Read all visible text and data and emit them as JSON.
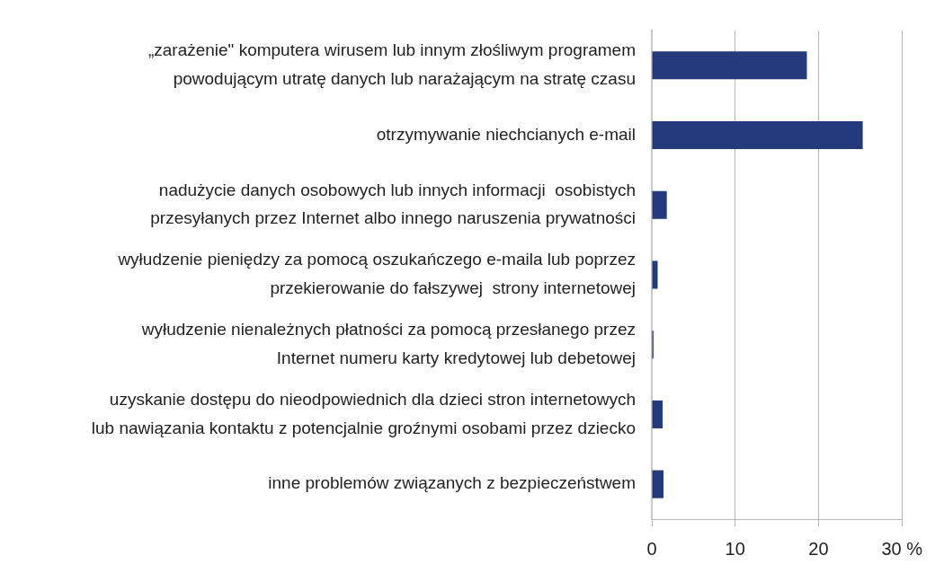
{
  "chart_data": {
    "type": "bar",
    "orientation": "horizontal",
    "categories": [
      "„zarażenie\" komputera wirusem lub innym złośliwym programem\npowodującym utratę danych lub narażającym na stratę czasu",
      "otrzymywanie niechcianych e-mail",
      "nadużycie danych osobowych lub innych informacji  osobistych\nprzesyłanych przez Internet albo innego naruszenia prywatności",
      "wyłudzenie pieniędzy za pomocą oszukańczego e-maila lub poprzez\nprzekierowanie do fałszywej  strony internetowej",
      "wyłudzenie nienależnych płatności za pomocą przesłanego przez\nInternet numeru karty kredytowej lub debetowej",
      "uzyskanie dostępu do nieodpowiednich dla dzieci stron internetowych\nlub nawiązania kontaktu z potencjalnie groźnymi osobami przez dziecko",
      "inne problemów związanych z bezpieczeństwem"
    ],
    "values": [
      18.6,
      25.3,
      1.8,
      0.7,
      0.2,
      1.3,
      1.4
    ],
    "color": "#253a7c",
    "xlim": [
      0,
      30
    ],
    "xticks": [
      0,
      10,
      20,
      {
        "value": 30,
        "label": "30 %"
      }
    ],
    "grid": "x",
    "legend": false
  }
}
